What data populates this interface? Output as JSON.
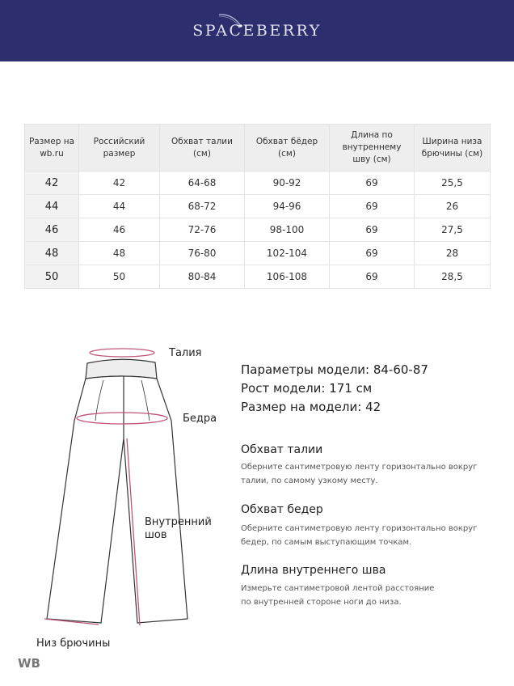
{
  "brand": {
    "name": "SPACEBERRY",
    "color": "#2c2e6e"
  },
  "size_table": {
    "headers": [
      "Размер на wb.ru",
      "Российский размер",
      "Обхват талии (см)",
      "Обхват бёдер (см)",
      "Длина по внутреннему шву (см)",
      "Ширина низа брючины (см)"
    ],
    "rows": [
      [
        "42",
        "42",
        "64-68",
        "90-92",
        "69",
        "25,5"
      ],
      [
        "44",
        "44",
        "68-72",
        "94-96",
        "69",
        "26"
      ],
      [
        "46",
        "46",
        "72-76",
        "98-100",
        "69",
        "27,5"
      ],
      [
        "48",
        "48",
        "76-80",
        "102-104",
        "69",
        "28"
      ],
      [
        "50",
        "50",
        "80-84",
        "106-108",
        "69",
        "28,5"
      ]
    ]
  },
  "diagram": {
    "labels": {
      "waist": "Талия",
      "hips": "Бедра",
      "inseam_1": "Внутренний",
      "inseam_2": "шов",
      "hem": "Низ брючины"
    },
    "accent_color": "#c0547a"
  },
  "model": {
    "params": "Параметры модели: 84-60-87",
    "height": "Рост модели: 171 см",
    "size": "Размер на модели: 42"
  },
  "instructions": [
    {
      "title": "Обхват талии",
      "text": "Оберните сантиметровую ленту горизонтально вокруг талии, по самому узкому месту."
    },
    {
      "title": "Обхват бедер",
      "text": "Оберните сантиметровую ленту горизонтально вокруг бедер, по самым выступающим точкам."
    },
    {
      "title": "Длина внутреннего шва",
      "text": "Измерьте сантиметровой лентой расстояние по внутренней стороне ноги до низа."
    }
  ],
  "watermark": "WB"
}
